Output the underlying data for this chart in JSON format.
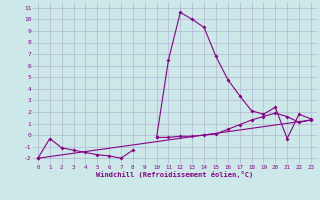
{
  "x": [
    0,
    1,
    2,
    3,
    4,
    5,
    6,
    7,
    8,
    9,
    10,
    11,
    12,
    13,
    14,
    15,
    16,
    17,
    18,
    19,
    20,
    21,
    22,
    23
  ],
  "line1": [
    -2.0,
    -0.3,
    -1.1,
    -1.3,
    -1.5,
    -1.7,
    -1.8,
    -2.0,
    -1.3,
    null,
    -0.2,
    6.5,
    10.6,
    10.0,
    9.3,
    6.8,
    4.8,
    3.4,
    2.1,
    1.8,
    2.4,
    -0.3,
    1.8,
    1.4
  ],
  "line2": [
    -2.0,
    null,
    null,
    null,
    null,
    null,
    null,
    null,
    null,
    null,
    -0.2,
    -0.2,
    -0.1,
    -0.1,
    0.0,
    0.1,
    0.5,
    0.9,
    1.3,
    1.6,
    1.9,
    1.6,
    1.1,
    1.3
  ],
  "line3_x": [
    0,
    23
  ],
  "line3_y": [
    -2.0,
    1.3
  ],
  "background_color": "#cce8e8",
  "grid_color": "#aaaacc",
  "line_color": "#880088",
  "xlabel": "Windchill (Refroidissement éolien,°C)",
  "ylim": [
    -2.5,
    11.5
  ],
  "xlim": [
    -0.5,
    23.5
  ],
  "yticks": [
    -2,
    -1,
    0,
    1,
    2,
    3,
    4,
    5,
    6,
    7,
    8,
    9,
    10,
    11
  ],
  "xticks": [
    0,
    1,
    2,
    3,
    4,
    5,
    6,
    7,
    8,
    9,
    10,
    11,
    12,
    13,
    14,
    15,
    16,
    17,
    18,
    19,
    20,
    21,
    22,
    23
  ]
}
